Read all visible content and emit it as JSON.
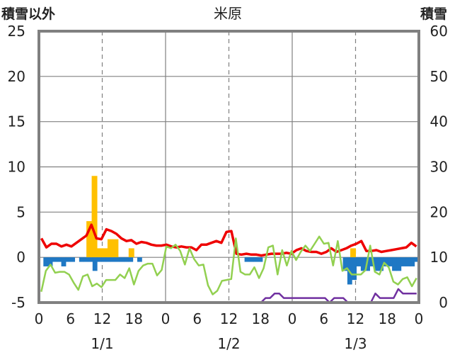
{
  "chart_data": {
    "type": "combo",
    "title": "米原",
    "left_axis_label": "積雪以外",
    "right_axis_label": "積雪",
    "left_ylim": [
      -5,
      25
    ],
    "left_yticks": [
      "-5",
      "0",
      "5",
      "10",
      "15",
      "20",
      "25"
    ],
    "right_ylim": [
      0,
      60
    ],
    "right_yticks": [
      "0",
      "10",
      "20",
      "30",
      "40",
      "50",
      "60"
    ],
    "x_range_hours": [
      0,
      72
    ],
    "x_tick_labels": [
      "0",
      "6",
      "12",
      "18",
      "0",
      "6",
      "12",
      "18",
      "0",
      "6",
      "12",
      "18",
      "0"
    ],
    "date_labels": [
      "1/1",
      "1/2",
      "1/3"
    ],
    "grid": true,
    "colors": {
      "precip_bar": "#ffc000",
      "negative_bar": "#1f78c4",
      "red_series": "#ee0000",
      "green_series": "#92d050",
      "snow_depth": "#7030a0",
      "axis_frame": "#808080",
      "grid": "#808080"
    },
    "series": [
      {
        "kind": "bar",
        "axis": "left",
        "color": "#ffc000",
        "values": [
          0,
          0,
          0,
          0,
          0,
          0,
          0,
          0,
          0,
          4,
          9,
          1,
          1,
          2,
          2,
          0,
          0,
          1,
          0,
          0,
          0,
          0,
          0,
          0,
          0,
          0,
          0,
          0,
          0,
          0,
          0,
          0,
          0,
          0,
          0,
          0,
          0,
          0,
          0,
          0,
          0,
          0,
          0,
          0,
          0,
          0,
          0,
          0,
          0,
          0,
          0,
          0,
          0,
          0,
          0,
          0,
          0,
          0,
          0,
          1,
          0,
          0,
          0,
          0,
          0,
          0,
          0,
          0,
          0,
          0,
          0,
          0
        ]
      },
      {
        "kind": "bar",
        "axis": "left",
        "color": "#1f78c4",
        "values": [
          0,
          -1,
          -1,
          -0.5,
          -0.5,
          -1,
          -0.5,
          -0.5,
          0,
          -0.5,
          -0.5,
          -0.5,
          -1.5,
          -0.5,
          -0.5,
          -0.5,
          -0.5,
          -0.5,
          -0.5,
          -0.5,
          -0.5,
          0,
          -0.5,
          0,
          0,
          0,
          0,
          0,
          0,
          0,
          0,
          0,
          0,
          0,
          0,
          0,
          0,
          0,
          0,
          0,
          0,
          0,
          0,
          0,
          0,
          0,
          -0.5,
          -0.5,
          -0.5,
          -0.5,
          0,
          0,
          0,
          0,
          0,
          0,
          0,
          0,
          0,
          0,
          0,
          0,
          0,
          0,
          0,
          0,
          0,
          0,
          -1.5,
          -3,
          -2.5,
          -1,
          -1.5,
          -1.5,
          -1,
          -1.5,
          -1.5,
          -1,
          -1,
          -1.5,
          -1.5,
          -1,
          -1,
          -1,
          -0.5
        ]
      },
      {
        "kind": "line",
        "axis": "left",
        "color": "#ee0000",
        "values": [
          2.1,
          1.1,
          1.5,
          1.5,
          1.2,
          1.4,
          1.2,
          1.6,
          2.0,
          2.4,
          3.6,
          2.1,
          2.0,
          3.1,
          2.9,
          2.6,
          2.1,
          1.8,
          1.9,
          1.5,
          1.7,
          1.6,
          1.4,
          1.3,
          1.3,
          1.4,
          1.2,
          1.1,
          1.2,
          1.1,
          1.1,
          0.8,
          1.4,
          1.4,
          1.6,
          1.8,
          1.6,
          2.8,
          2.9,
          0.4,
          0.3,
          0.4,
          0.3,
          0.3,
          0.2,
          0.3,
          0.4,
          0.4,
          0.4,
          0.5,
          0.4,
          0.8,
          1.0,
          0.7,
          0.6,
          0.6,
          0.4,
          0.6,
          1.0,
          0.6,
          0.8,
          1.0,
          1.3,
          1.5,
          1.8,
          0.7,
          0.7,
          0.8,
          0.6,
          0.7,
          0.8,
          0.9,
          1.0,
          1.1,
          1.6,
          1.2
        ]
      },
      {
        "kind": "line",
        "axis": "left",
        "color": "#92d050",
        "values": [
          -3.8,
          -1.5,
          -0.8,
          -1.7,
          -1.6,
          -1.6,
          -1.9,
          -2.8,
          -3.6,
          -2.1,
          -1.9,
          -3.2,
          -2.9,
          -3.3,
          -2.5,
          -2.5,
          -2.5,
          -1.9,
          -2.3,
          -1.2,
          -3.0,
          -1.5,
          -0.9,
          -0.7,
          -0.7,
          -2.0,
          -1.4,
          1.2,
          1.0,
          1.4,
          0.7,
          -0.8,
          1.0,
          -0.2,
          -0.9,
          -0.8,
          -3.1,
          -4.1,
          -3.7,
          -2.6,
          -2.5,
          -2.4,
          2.1,
          -1.6,
          -1.9,
          -1.9,
          -1.1,
          -2.3,
          -1.2,
          1.1,
          1.3,
          -1.9,
          0.8,
          -0.9,
          0.7,
          -0.3,
          0.6,
          1.3,
          0.7,
          1.5,
          2.3,
          1.5,
          1.6,
          -0.9,
          1.8,
          -1.5,
          -1.2,
          -1.9,
          -1.9,
          -1.9,
          -1.4,
          1.3,
          -1.6,
          -1.9,
          -0.6,
          -1.1,
          -2.7,
          -3.0,
          -2.4,
          -2.2,
          -3.2,
          -2.3
        ]
      },
      {
        "kind": "line",
        "axis": "right",
        "color": "#7030a0",
        "values": [
          0,
          0,
          0,
          0,
          0,
          0,
          0,
          0,
          0,
          0,
          0,
          0,
          0,
          0,
          0,
          0,
          0,
          0,
          0,
          0,
          0,
          0,
          0,
          0,
          0,
          0,
          0,
          0,
          0,
          0,
          0,
          0,
          0,
          0,
          0,
          0,
          0,
          0,
          0,
          0,
          0,
          0,
          0,
          0,
          0,
          0,
          0,
          0,
          0,
          1,
          1,
          2,
          2,
          1,
          1,
          1,
          1,
          1,
          1,
          1,
          1,
          1,
          1,
          0,
          1,
          1,
          1,
          0,
          0,
          0,
          0,
          0,
          0,
          2,
          1,
          1,
          1,
          1,
          3,
          2,
          2,
          2,
          2
        ]
      }
    ]
  }
}
